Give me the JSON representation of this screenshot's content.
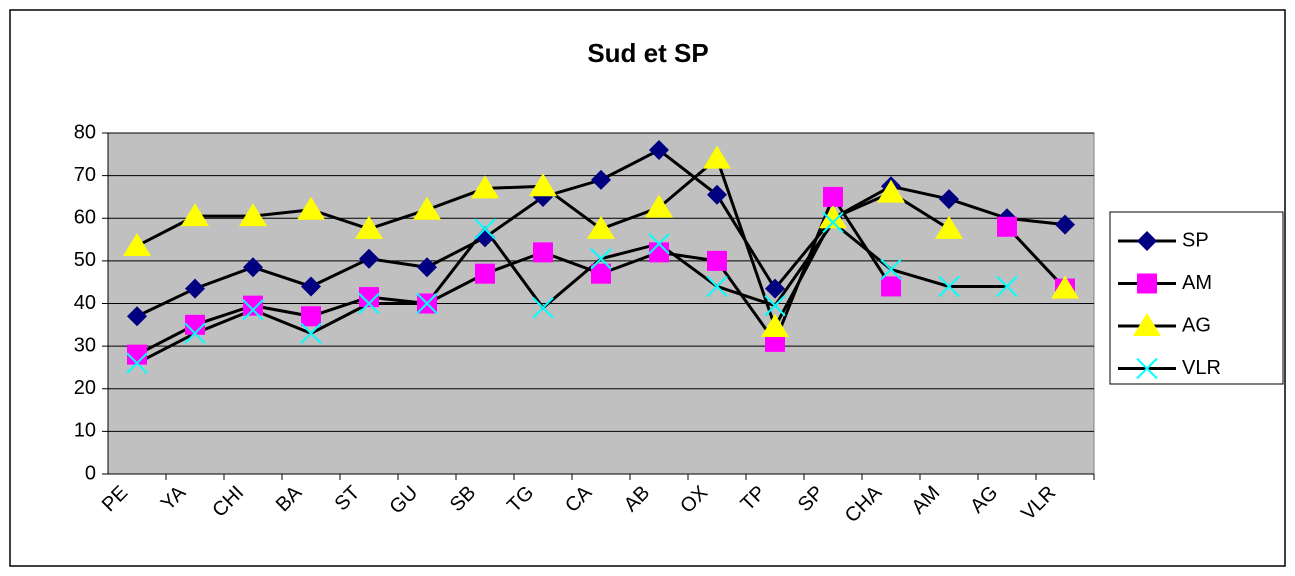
{
  "chart_data": {
    "type": "line",
    "title": "Sud et SP",
    "categories": [
      "PE",
      "YA",
      "CHI",
      "BA",
      "ST",
      "GU",
      "SB",
      "TG",
      "CA",
      "AB",
      "OX",
      "TP",
      "SP",
      "CHA",
      "AM",
      "AG",
      "VLR"
    ],
    "ylim": [
      0,
      80
    ],
    "yticks": [
      0,
      10,
      20,
      30,
      40,
      50,
      60,
      70,
      80
    ],
    "grid": true,
    "legend": "right",
    "line_color": "#000000",
    "plot_background": "#c0c0c0",
    "series": [
      {
        "name": "SP",
        "color": "#000080",
        "marker": "diamond",
        "values": [
          37,
          43.5,
          48.5,
          44,
          50.5,
          48.5,
          55.5,
          65,
          69,
          76,
          65.5,
          43.5,
          60,
          67.5,
          64.5,
          60,
          58.5
        ]
      },
      {
        "name": "AM",
        "color": "#ff00ff",
        "marker": "square",
        "values": [
          28,
          35,
          39.5,
          37,
          41.5,
          40,
          47,
          52,
          47,
          52,
          50,
          31,
          65,
          44,
          null,
          58,
          43.5
        ]
      },
      {
        "name": "AG",
        "color": "#ffff00",
        "marker": "triangle",
        "values": [
          53.5,
          60.5,
          60.5,
          62,
          57.5,
          62,
          67,
          67.5,
          57.5,
          62.5,
          74,
          34.5,
          60,
          66,
          57.5,
          null,
          43.5
        ]
      },
      {
        "name": "VLR",
        "color": "#00ffff",
        "marker": "x",
        "values": [
          26,
          33,
          38.5,
          33,
          40,
          40,
          57.5,
          39,
          50.5,
          54,
          44,
          39.5,
          59,
          48,
          44,
          44,
          null
        ]
      }
    ]
  }
}
